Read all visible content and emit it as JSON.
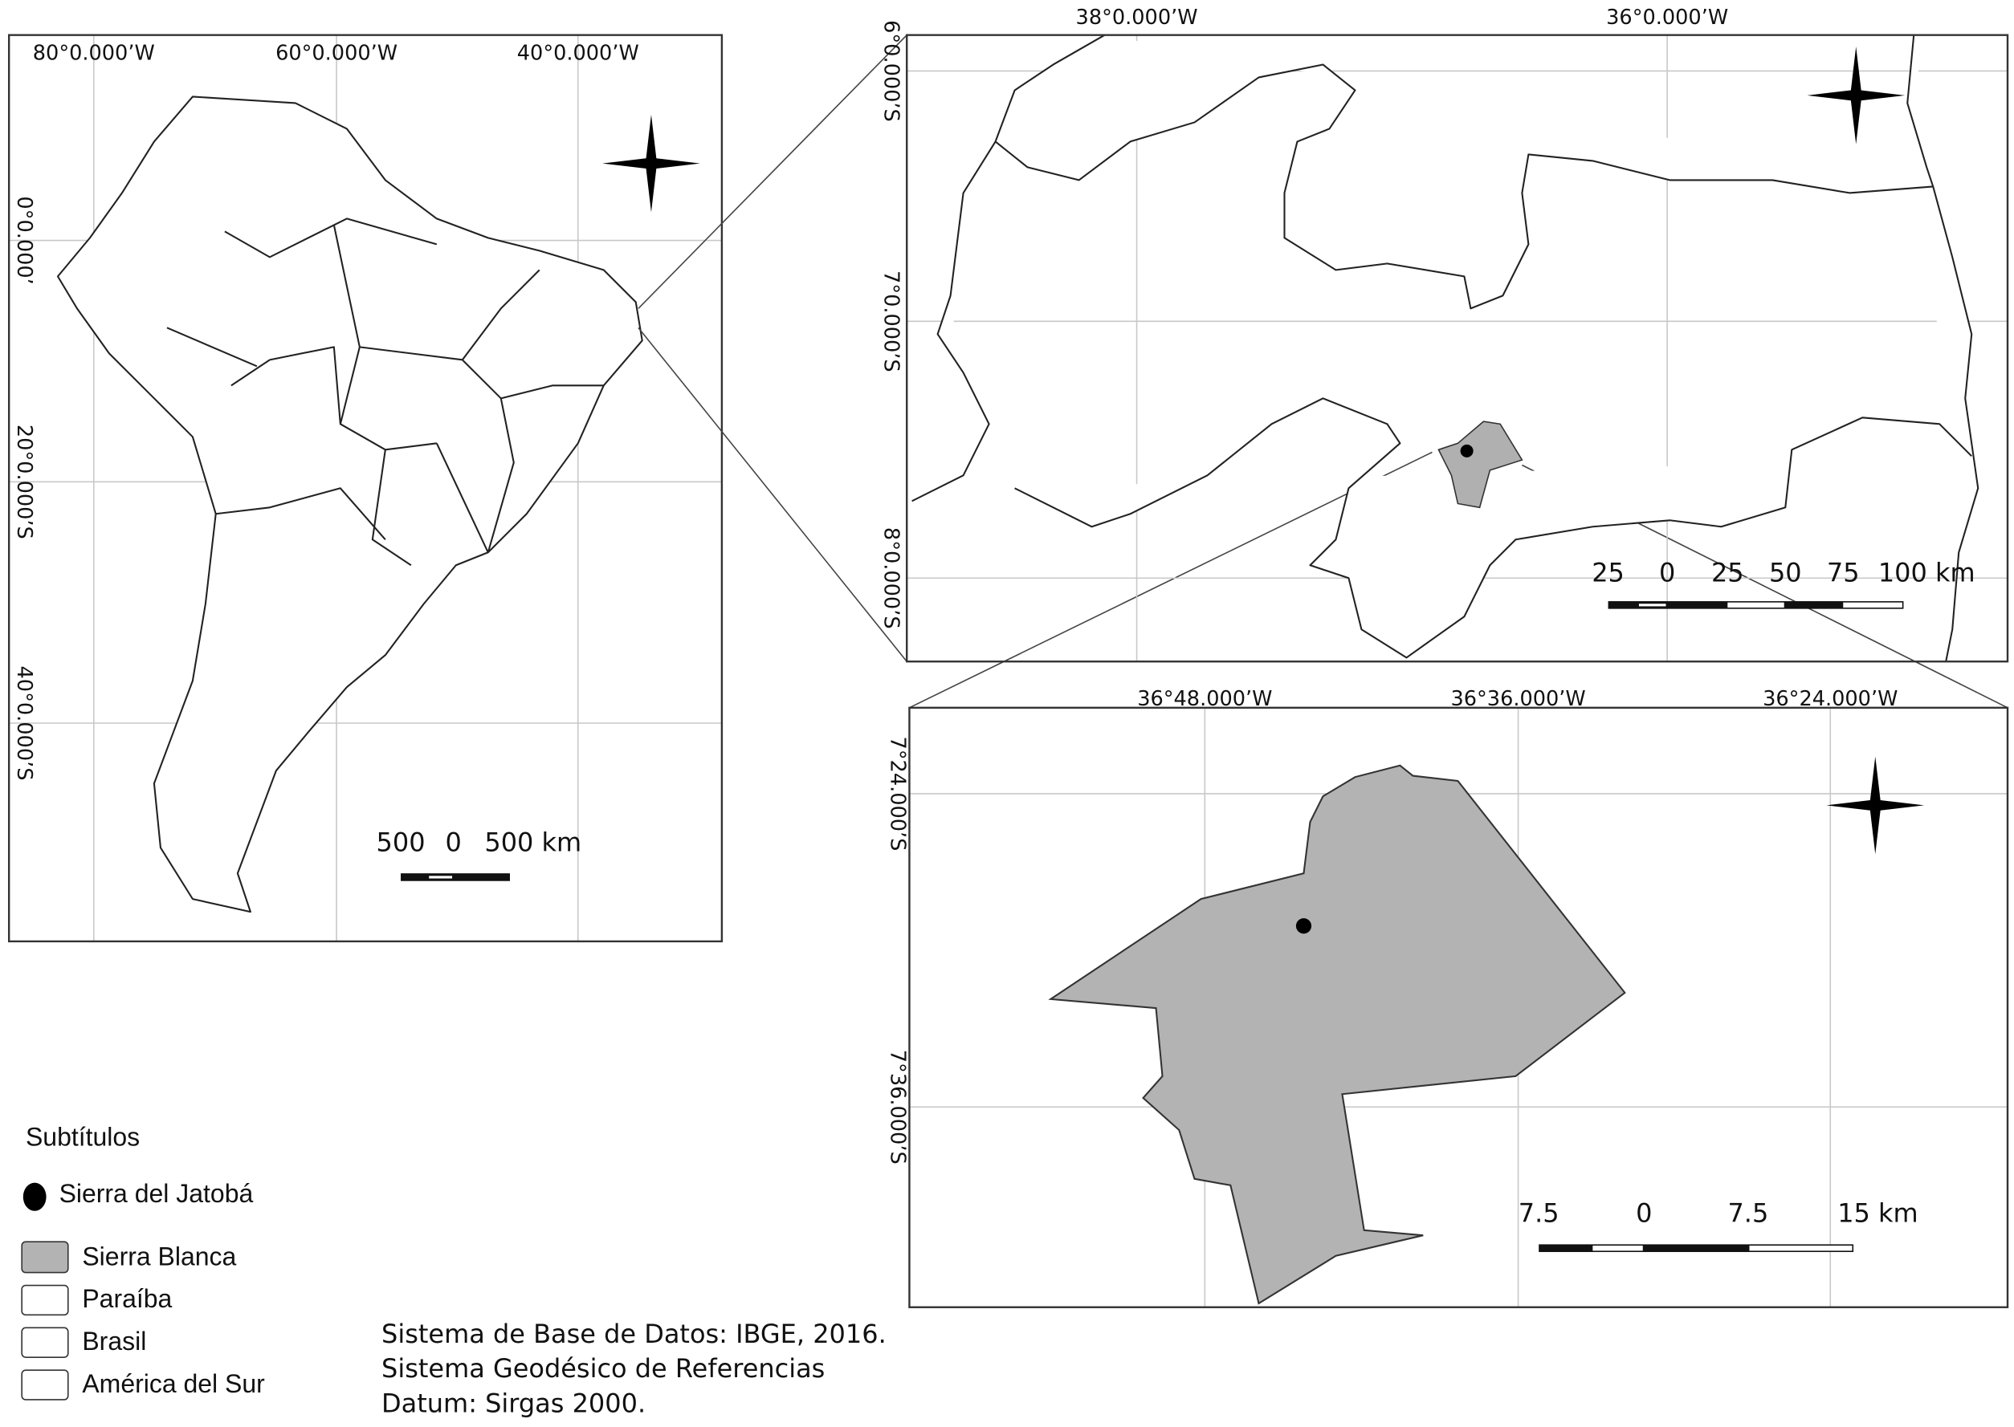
{
  "south_america_map": {
    "lon_labels": [
      "80°0.000’W",
      "60°0.000’W",
      "40°0.000’W"
    ],
    "lat_labels": [
      "0°0.000’",
      "20°0.000’S",
      "40°0.000’S"
    ],
    "scale_labels": [
      "500",
      "0",
      "500 km"
    ]
  },
  "paraiba_map": {
    "lon_labels": [
      "38°0.000’W",
      "36°0.000’W"
    ],
    "lat_labels": [
      "6°0.000’S",
      "7°0.000’S",
      "8°0.000’S"
    ],
    "scale_labels": [
      "25",
      "0",
      "25",
      "50",
      "75",
      "100 km"
    ]
  },
  "sierra_blanca_map": {
    "lon_labels": [
      "36°48.000’W",
      "36°36.000’W",
      "36°24.000’W"
    ],
    "lat_labels": [
      "7°24.000’S",
      "7°36.000’S"
    ],
    "scale_labels": [
      "7.5",
      "0",
      "7.5",
      "15 km"
    ]
  },
  "legend": {
    "title": "Subtítulos",
    "items": [
      "Sierra del Jatobá",
      "Sierra Blanca",
      "Paraíba",
      "Brasil",
      "América del Sur"
    ]
  },
  "source_notes": [
    "Sistema de Base de Datos: IBGE, 2016.",
    "Sistema Geodésico de Referencias",
    "Datum: Sirgas 2000."
  ]
}
